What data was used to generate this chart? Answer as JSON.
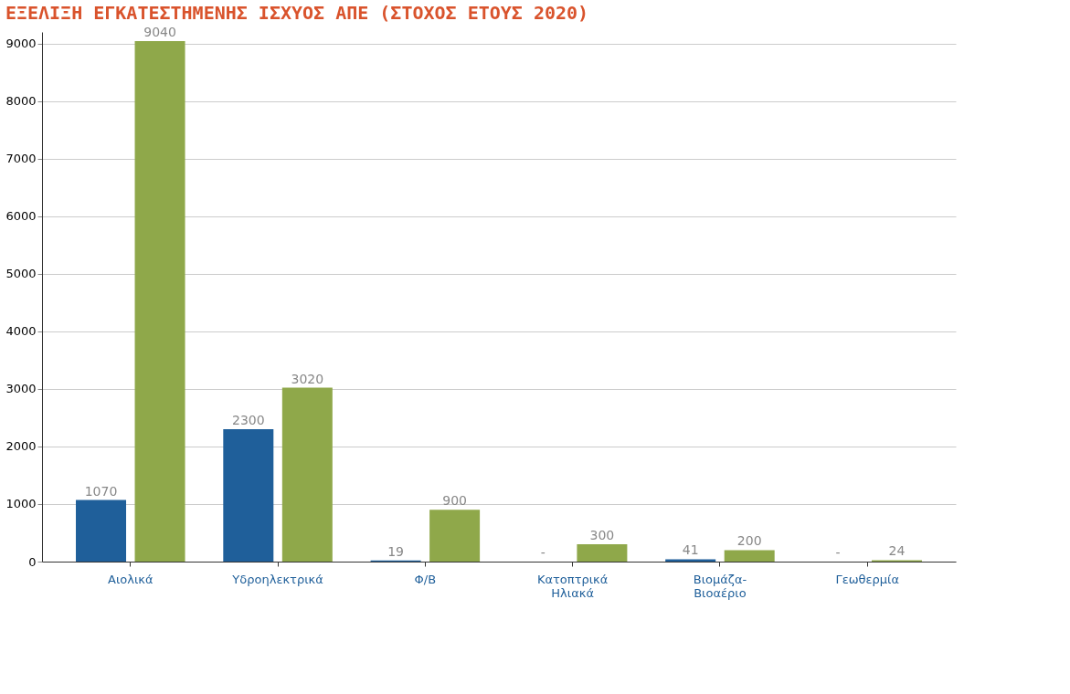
{
  "chart_data": {
    "type": "bar",
    "title": "ΕΞΕΛΙΞΗ ΕΓΚΑΤΕΣΤΗΜΕΝΗΣ ΙΣΧΥΟΣ ΑΠΕ (ΣΤΟΧΟΣ ΕΤΟΥΣ 2020)",
    "categories": [
      "Αιολικά",
      "Υδροηλεκτρικά",
      "Φ/Β",
      "Κατοπτρικά\nΗλιακά",
      "Βιομάζα-\nΒιοαέριο",
      "Γεωθερμία"
    ],
    "series": [
      {
        "color": "#1f5f9a",
        "values": [
          1070,
          2300,
          19,
          null,
          41,
          null
        ],
        "value_labels": [
          "1070",
          "2300",
          "19",
          "-",
          "41",
          "-"
        ]
      },
      {
        "color": "#8fa84a",
        "values": [
          9040,
          3020,
          900,
          300,
          200,
          24
        ],
        "value_labels": [
          "9040",
          "3020",
          "900",
          "300",
          "200",
          "24"
        ]
      }
    ],
    "ylim": [
      0,
      9200
    ],
    "yticks": [
      0,
      1000,
      2000,
      3000,
      4000,
      5000,
      6000,
      7000,
      8000,
      9000
    ],
    "grid": "y",
    "legend": false
  }
}
